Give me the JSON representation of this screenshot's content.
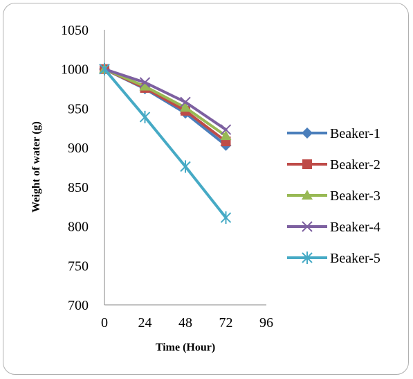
{
  "chart_data": {
    "type": "line",
    "xlabel": "Time (Hour)",
    "ylabel": "Weight of water (g)",
    "xlim": [
      0,
      96
    ],
    "ylim": [
      700,
      1050
    ],
    "xticks": [
      0,
      24,
      48,
      72,
      96
    ],
    "yticks": [
      700,
      750,
      800,
      850,
      900,
      950,
      1000,
      1050
    ],
    "grid": false,
    "legend_position": "right",
    "x": [
      0,
      24,
      48,
      72
    ],
    "series": [
      {
        "name": "Beaker-1",
        "values": [
          1000,
          975,
          944,
          903
        ],
        "color": "#4a7ebb",
        "marker": "diamond"
      },
      {
        "name": "Beaker-2",
        "values": [
          1000,
          976,
          947,
          908
        ],
        "color": "#be4b48",
        "marker": "square"
      },
      {
        "name": "Beaker-3",
        "values": [
          1000,
          978,
          951,
          915
        ],
        "color": "#98b954",
        "marker": "triangle"
      },
      {
        "name": "Beaker-4",
        "values": [
          1000,
          983,
          958,
          923
        ],
        "color": "#7d60a0",
        "marker": "x"
      },
      {
        "name": "Beaker-5",
        "values": [
          1000,
          939,
          876,
          811
        ],
        "color": "#46aac5",
        "marker": "star"
      }
    ]
  }
}
